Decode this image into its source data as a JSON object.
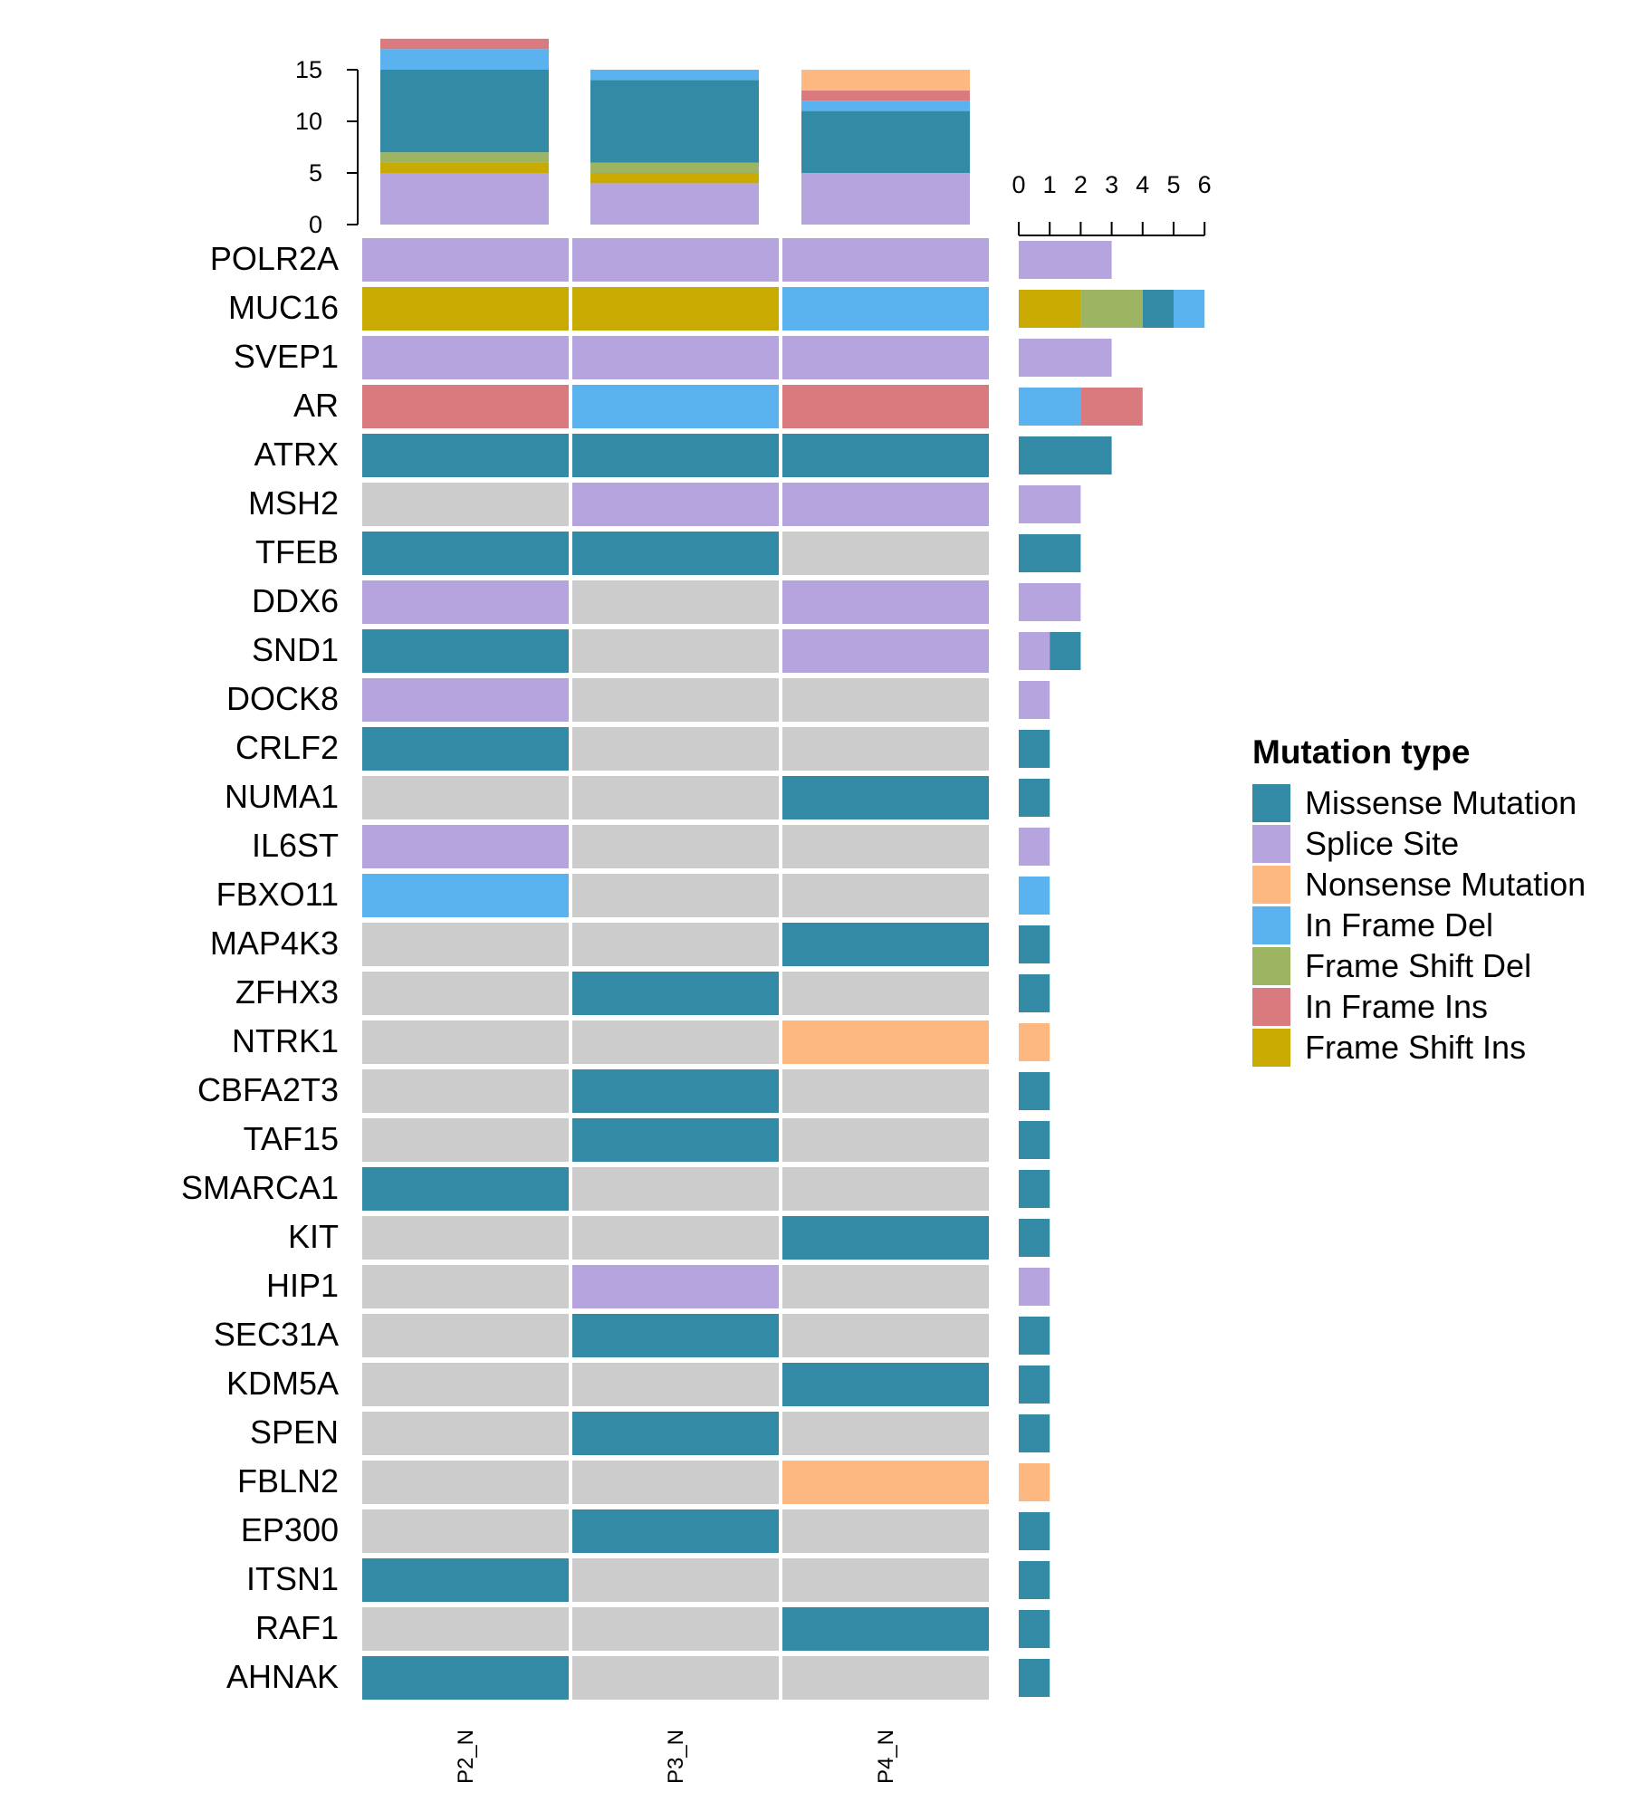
{
  "chart_data": {
    "type": "heatmap",
    "samples": [
      "P2_N",
      "P3_N",
      "P4_N"
    ],
    "genes": [
      "POLR2A",
      "MUC16",
      "SVEP1",
      "AR",
      "ATRX",
      "MSH2",
      "TFEB",
      "DDX6",
      "SND1",
      "DOCK8",
      "CRLF2",
      "NUMA1",
      "IL6ST",
      "FBXO11",
      "MAP4K3",
      "ZFHX3",
      "NTRK1",
      "CBFA2T3",
      "TAF15",
      "SMARCA1",
      "KIT",
      "HIP1",
      "SEC31A",
      "KDM5A",
      "SPEN",
      "FBLN2",
      "EP300",
      "ITSN1",
      "RAF1",
      "AHNAK"
    ],
    "matrix": [
      [
        "Splice Site",
        "Splice Site",
        "Splice Site"
      ],
      [
        "Frame Shift Ins",
        "Frame Shift Ins",
        "In Frame Del"
      ],
      [
        "Splice Site",
        "Splice Site",
        "Splice Site"
      ],
      [
        "In Frame Ins",
        "In Frame Del",
        "In Frame Ins"
      ],
      [
        "Missense Mutation",
        "Missense Mutation",
        "Missense Mutation"
      ],
      [
        null,
        "Splice Site",
        "Splice Site"
      ],
      [
        "Missense Mutation",
        "Missense Mutation",
        null
      ],
      [
        "Splice Site",
        null,
        "Splice Site"
      ],
      [
        "Missense Mutation",
        null,
        "Splice Site"
      ],
      [
        "Splice Site",
        null,
        null
      ],
      [
        "Missense Mutation",
        null,
        null
      ],
      [
        null,
        null,
        "Missense Mutation"
      ],
      [
        "Splice Site",
        null,
        null
      ],
      [
        "In Frame Del",
        null,
        null
      ],
      [
        null,
        null,
        "Missense Mutation"
      ],
      [
        null,
        "Missense Mutation",
        null
      ],
      [
        null,
        null,
        "Nonsense Mutation"
      ],
      [
        null,
        "Missense Mutation",
        null
      ],
      [
        null,
        "Missense Mutation",
        null
      ],
      [
        "Missense Mutation",
        null,
        null
      ],
      [
        null,
        null,
        "Missense Mutation"
      ],
      [
        null,
        "Splice Site",
        null
      ],
      [
        null,
        "Missense Mutation",
        null
      ],
      [
        null,
        null,
        "Missense Mutation"
      ],
      [
        null,
        "Missense Mutation",
        null
      ],
      [
        null,
        null,
        "Nonsense Mutation"
      ],
      [
        null,
        "Missense Mutation",
        null
      ],
      [
        "Missense Mutation",
        null,
        null
      ],
      [
        null,
        null,
        "Missense Mutation"
      ],
      [
        "Missense Mutation",
        null,
        null
      ]
    ],
    "top_barplot": {
      "ylim": [
        0,
        15
      ],
      "ticks": [
        0,
        5,
        10,
        15
      ],
      "stacks": [
        [
          {
            "type": "Splice Site",
            "value": 5
          },
          {
            "type": "Frame Shift Ins",
            "value": 1
          },
          {
            "type": "Frame Shift Del",
            "value": 1
          },
          {
            "type": "Missense Mutation",
            "value": 8
          },
          {
            "type": "In Frame Del",
            "value": 2
          },
          {
            "type": "In Frame Ins",
            "value": 1
          }
        ],
        [
          {
            "type": "Splice Site",
            "value": 4
          },
          {
            "type": "Frame Shift Ins",
            "value": 1
          },
          {
            "type": "Frame Shift Del",
            "value": 1
          },
          {
            "type": "Missense Mutation",
            "value": 8
          },
          {
            "type": "In Frame Del",
            "value": 1
          }
        ],
        [
          {
            "type": "Splice Site",
            "value": 5
          },
          {
            "type": "Missense Mutation",
            "value": 6
          },
          {
            "type": "In Frame Del",
            "value": 1
          },
          {
            "type": "In Frame Ins",
            "value": 1
          },
          {
            "type": "Nonsense Mutation",
            "value": 2
          }
        ]
      ]
    },
    "right_barplot": {
      "xlim": [
        0,
        6
      ],
      "ticks": [
        0,
        1,
        2,
        3,
        4,
        5,
        6
      ],
      "stacks": [
        [
          {
            "type": "Splice Site",
            "value": 3
          }
        ],
        [
          {
            "type": "Frame Shift Ins",
            "value": 2
          },
          {
            "type": "Frame Shift Del",
            "value": 2
          },
          {
            "type": "Missense Mutation",
            "value": 1
          },
          {
            "type": "In Frame Del",
            "value": 1
          }
        ],
        [
          {
            "type": "Splice Site",
            "value": 3
          }
        ],
        [
          {
            "type": "In Frame Del",
            "value": 2
          },
          {
            "type": "In Frame Ins",
            "value": 2
          }
        ],
        [
          {
            "type": "Missense Mutation",
            "value": 3
          }
        ],
        [
          {
            "type": "Splice Site",
            "value": 2
          }
        ],
        [
          {
            "type": "Missense Mutation",
            "value": 2
          }
        ],
        [
          {
            "type": "Splice Site",
            "value": 2
          }
        ],
        [
          {
            "type": "Splice Site",
            "value": 1
          },
          {
            "type": "Missense Mutation",
            "value": 1
          }
        ],
        [
          {
            "type": "Splice Site",
            "value": 1
          }
        ],
        [
          {
            "type": "Missense Mutation",
            "value": 1
          }
        ],
        [
          {
            "type": "Missense Mutation",
            "value": 1
          }
        ],
        [
          {
            "type": "Splice Site",
            "value": 1
          }
        ],
        [
          {
            "type": "In Frame Del",
            "value": 1
          }
        ],
        [
          {
            "type": "Missense Mutation",
            "value": 1
          }
        ],
        [
          {
            "type": "Missense Mutation",
            "value": 1
          }
        ],
        [
          {
            "type": "Nonsense Mutation",
            "value": 1
          }
        ],
        [
          {
            "type": "Missense Mutation",
            "value": 1
          }
        ],
        [
          {
            "type": "Missense Mutation",
            "value": 1
          }
        ],
        [
          {
            "type": "Missense Mutation",
            "value": 1
          }
        ],
        [
          {
            "type": "Missense Mutation",
            "value": 1
          }
        ],
        [
          {
            "type": "Splice Site",
            "value": 1
          }
        ],
        [
          {
            "type": "Missense Mutation",
            "value": 1
          }
        ],
        [
          {
            "type": "Missense Mutation",
            "value": 1
          }
        ],
        [
          {
            "type": "Missense Mutation",
            "value": 1
          }
        ],
        [
          {
            "type": "Nonsense Mutation",
            "value": 1
          }
        ],
        [
          {
            "type": "Missense Mutation",
            "value": 1
          }
        ],
        [
          {
            "type": "Missense Mutation",
            "value": 1
          }
        ],
        [
          {
            "type": "Missense Mutation",
            "value": 1
          }
        ],
        [
          {
            "type": "Missense Mutation",
            "value": 1
          }
        ]
      ]
    },
    "legend": {
      "title": "Mutation type",
      "placement": "right",
      "items": [
        {
          "label": "Missense Mutation",
          "color": "#338AA5"
        },
        {
          "label": "Splice Site",
          "color": "#B6A4DF"
        },
        {
          "label": "Nonsense Mutation",
          "color": "#FDB882"
        },
        {
          "label": "In Frame Del",
          "color": "#5AB3EE"
        },
        {
          "label": "Frame Shift Del",
          "color": "#9DB563"
        },
        {
          "label": "In Frame Ins",
          "color": "#D87A7E"
        },
        {
          "label": "Frame Shift Ins",
          "color": "#C8AA00"
        }
      ]
    },
    "empty_color": "#CCCCCC"
  }
}
